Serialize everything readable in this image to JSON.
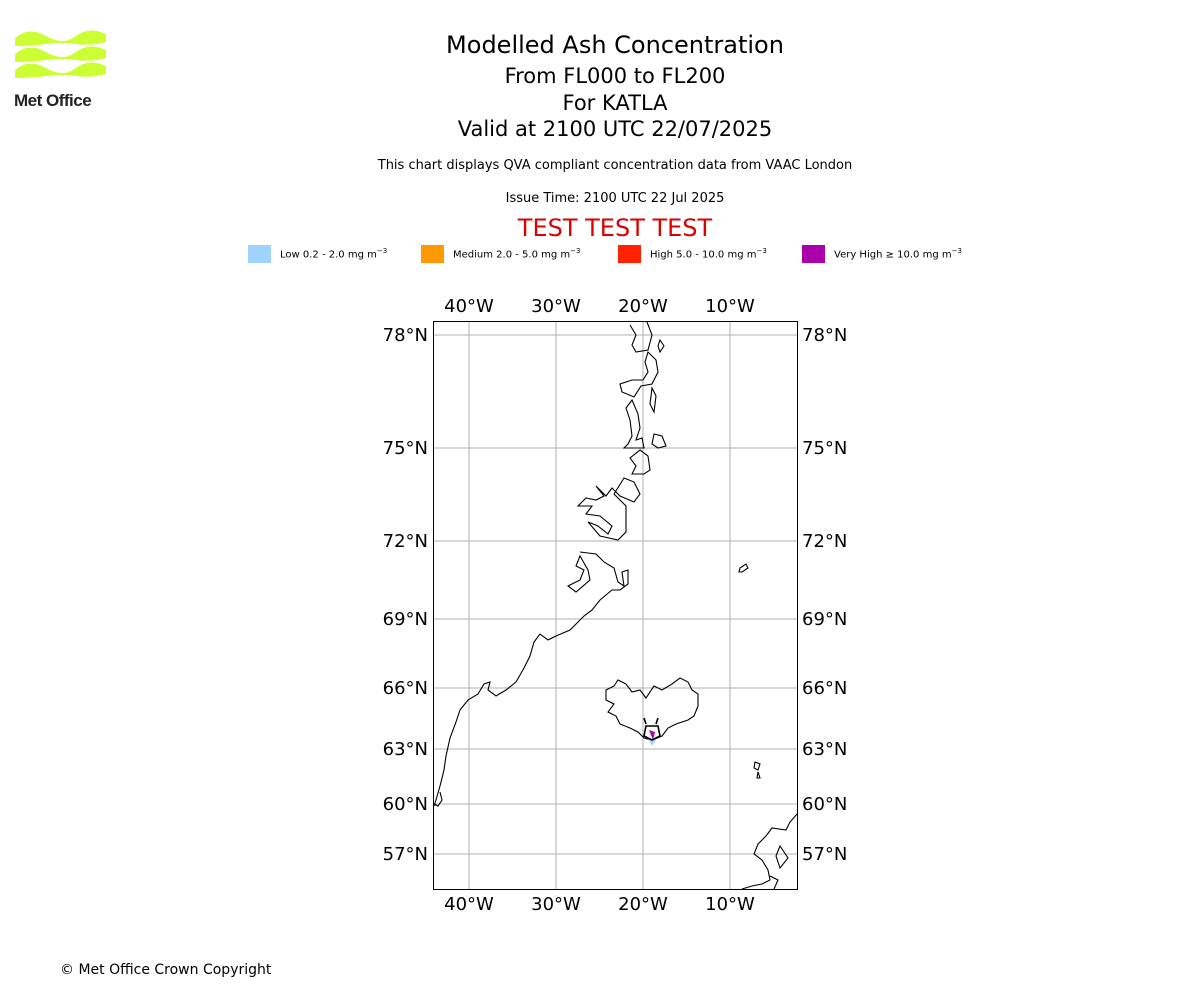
{
  "titles": {
    "main": "Modelled Ash Concentration",
    "levels": "From FL000 to FL200",
    "volcano": "For KATLA",
    "valid": "Valid at 2100 UTC 22/07/2025",
    "description": "This chart displays QVA compliant concentration data from VAAC London",
    "issue_time": "Issue Time: 2100 UTC 22 Jul 2025",
    "test_banner": "TEST TEST TEST"
  },
  "logo": {
    "text": "Met Office",
    "color": "#ccff33"
  },
  "legend": [
    {
      "label": "Low 0.2 - 2.0 mg m",
      "exp": "−3",
      "color": "#a0d4ff"
    },
    {
      "label": "Medium 2.0 - 5.0 mg m",
      "exp": "−3",
      "color": "#ff9900"
    },
    {
      "label": "High 5.0 - 10.0 mg m",
      "exp": "−3",
      "color": "#ff2200"
    },
    {
      "label": "Very High  ≥  10.0 mg m",
      "exp": "−3",
      "color": "#aa00aa"
    }
  ],
  "map": {
    "longitude_labels": [
      "40°W",
      "30°W",
      "20°W",
      "10°W"
    ],
    "latitude_labels": [
      "78°N",
      "75°N",
      "72°N",
      "69°N",
      "66°N",
      "63°N",
      "60°N",
      "57°N"
    ],
    "gridlines": true,
    "volcano_name": "KATLA"
  },
  "footer": {
    "copyright": "© Met Office Crown Copyright"
  }
}
